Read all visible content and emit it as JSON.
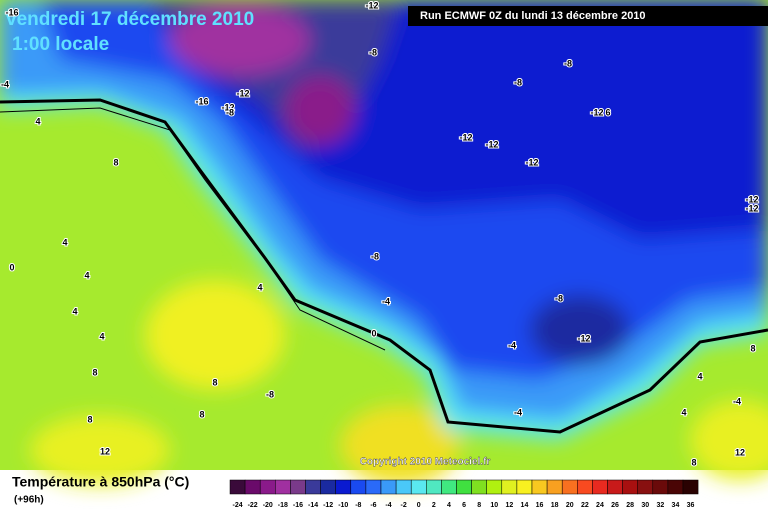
{
  "header": {
    "date": "vendredi 17 décembre 2010",
    "time": "1:00 locale",
    "run": "Run ECMWF 0Z du lundi 13 décembre 2010"
  },
  "copyright": "Copyright 2010 Meteociel.fr",
  "legend": {
    "title": "Température à 850hPa (°C)",
    "lead": "(+96h)",
    "values": [
      -24,
      -22,
      -20,
      -18,
      -16,
      -14,
      -12,
      -10,
      -8,
      -6,
      -4,
      -2,
      0,
      2,
      4,
      6,
      8,
      10,
      12,
      14,
      16,
      18,
      20,
      22,
      24,
      26,
      28,
      30,
      32,
      34,
      36
    ],
    "colors": [
      "#3a0a3a",
      "#6a0a6a",
      "#8a1a8a",
      "#a030a0",
      "#7a3a8a",
      "#3a3a9a",
      "#1a2aa0",
      "#0a1ad0",
      "#1a4af0",
      "#2a6af8",
      "#3a9af8",
      "#4ac8f8",
      "#5ae8f0",
      "#50e8c0",
      "#40e880",
      "#40e040",
      "#80e020",
      "#b0f010",
      "#e0f020",
      "#f8f020",
      "#f8c820",
      "#f8a020",
      "#f87020",
      "#f84a20",
      "#e82a20",
      "#c81a1a",
      "#a81010",
      "#881010",
      "#6a0a0a",
      "#4a0505",
      "#2a0202"
    ]
  },
  "contour_labels": [
    "-16",
    "-4",
    "-12",
    "-8",
    "-8",
    "-8",
    "-16",
    "-12",
    "-12",
    "-8",
    "4",
    "-12",
    "6",
    "-12",
    "-12",
    "-12",
    "8",
    "-12",
    "-12",
    "4",
    "-8",
    "0",
    "4",
    "4",
    "-4",
    "-8",
    "4",
    "4",
    "0",
    "-12",
    "-4",
    "8",
    "8",
    "4",
    "8",
    "-8",
    "-4",
    "4",
    "-4",
    "8",
    "8",
    "12",
    "12",
    "8"
  ]
}
